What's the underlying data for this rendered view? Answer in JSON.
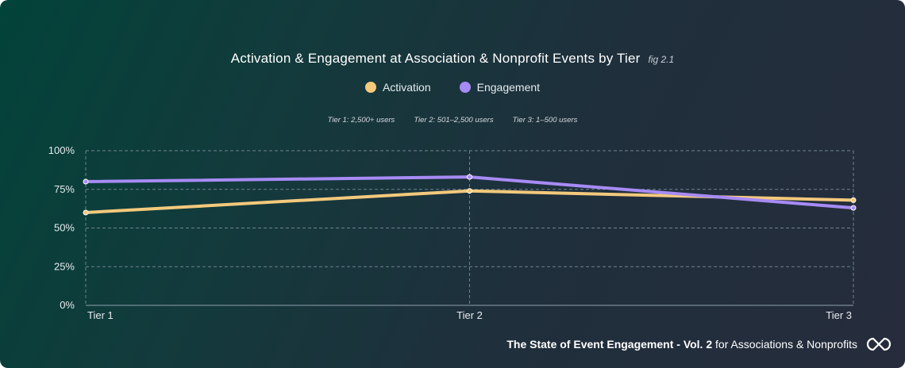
{
  "colors": {
    "activation": "#f3c97c",
    "engagement": "#a78bf5",
    "grid": "#6f8290"
  },
  "chart_data": {
    "type": "line",
    "title": "Activation & Engagement at Association & Nonprofit Events by Tier",
    "fig_label": "fig 2.1",
    "categories": [
      "Tier 1",
      "Tier 2",
      "Tier 3"
    ],
    "series": [
      {
        "name": "Activation",
        "values": [
          60,
          74,
          68
        ]
      },
      {
        "name": "Engagement",
        "values": [
          80,
          83,
          63
        ]
      }
    ],
    "ylim": [
      0,
      100
    ],
    "yticks": [
      "0%",
      "25%",
      "50%",
      "75%",
      "100%"
    ],
    "ytick_values": [
      0,
      25,
      50,
      75,
      100
    ],
    "notes": [
      "Tier 1: 2,500+ users",
      "Tier 2: 501–2,500 users",
      "Tier 3: 1–500 users"
    ],
    "grid": true,
    "legend_position": "top-center"
  },
  "footer": {
    "bold": "The State of Event Engagement - Vol. 2",
    "rest": " for Associations & Nonprofits",
    "logo_icon": "infinity-logo-icon"
  }
}
